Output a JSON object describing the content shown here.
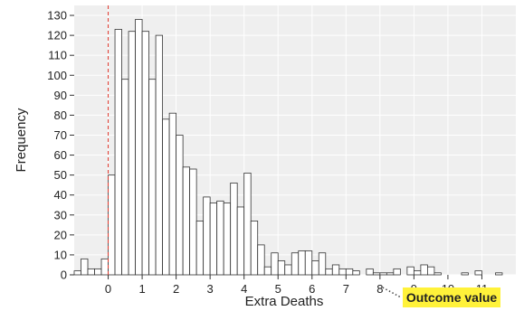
{
  "chart_data": {
    "type": "bar",
    "xlabel": "Extra Deaths",
    "ylabel": "Frequency",
    "xlim": [
      -1.0,
      12.0
    ],
    "ylim": [
      0,
      135
    ],
    "x_ticks": [
      0,
      1,
      2,
      3,
      4,
      5,
      6,
      7,
      8,
      9,
      10,
      11
    ],
    "x_tick_labels": [
      "0",
      "1",
      "2",
      "3",
      "4",
      "5",
      "6",
      "7",
      "8",
      "9",
      "10",
      "11"
    ],
    "y_ticks": [
      0,
      10,
      20,
      30,
      40,
      50,
      60,
      70,
      80,
      90,
      100,
      110,
      120,
      130
    ],
    "y_tick_labels": [
      "0",
      "10",
      "20",
      "30",
      "40",
      "50",
      "60",
      "70",
      "80",
      "90",
      "100",
      "110",
      "120",
      "130"
    ],
    "bin_start": -1.0,
    "bin_width": 0.2,
    "values": [
      2,
      8,
      3,
      3,
      8,
      50,
      123,
      98,
      122,
      128,
      122,
      98,
      120,
      78,
      81,
      70,
      54,
      53,
      27,
      39,
      36,
      37,
      36,
      46,
      34,
      51,
      27,
      15,
      4,
      11,
      7,
      5,
      11,
      12,
      12,
      7,
      11,
      3,
      5,
      3,
      3,
      2,
      0,
      3,
      1,
      1,
      1,
      3,
      0,
      4,
      2,
      5,
      4,
      1,
      0,
      0,
      0,
      1,
      0,
      2,
      0,
      0,
      1
    ],
    "reference_line": {
      "x": 0,
      "color": "#e03a2e",
      "style": "dashed"
    },
    "annotation": {
      "text": "Outcome value",
      "points_to_x": 8.0,
      "background": "#fff23a"
    },
    "grid": true,
    "background_color": "#efefef",
    "grid_color": "#ffffff",
    "bar_fill": "#ffffff",
    "bar_edge": "#333333"
  }
}
